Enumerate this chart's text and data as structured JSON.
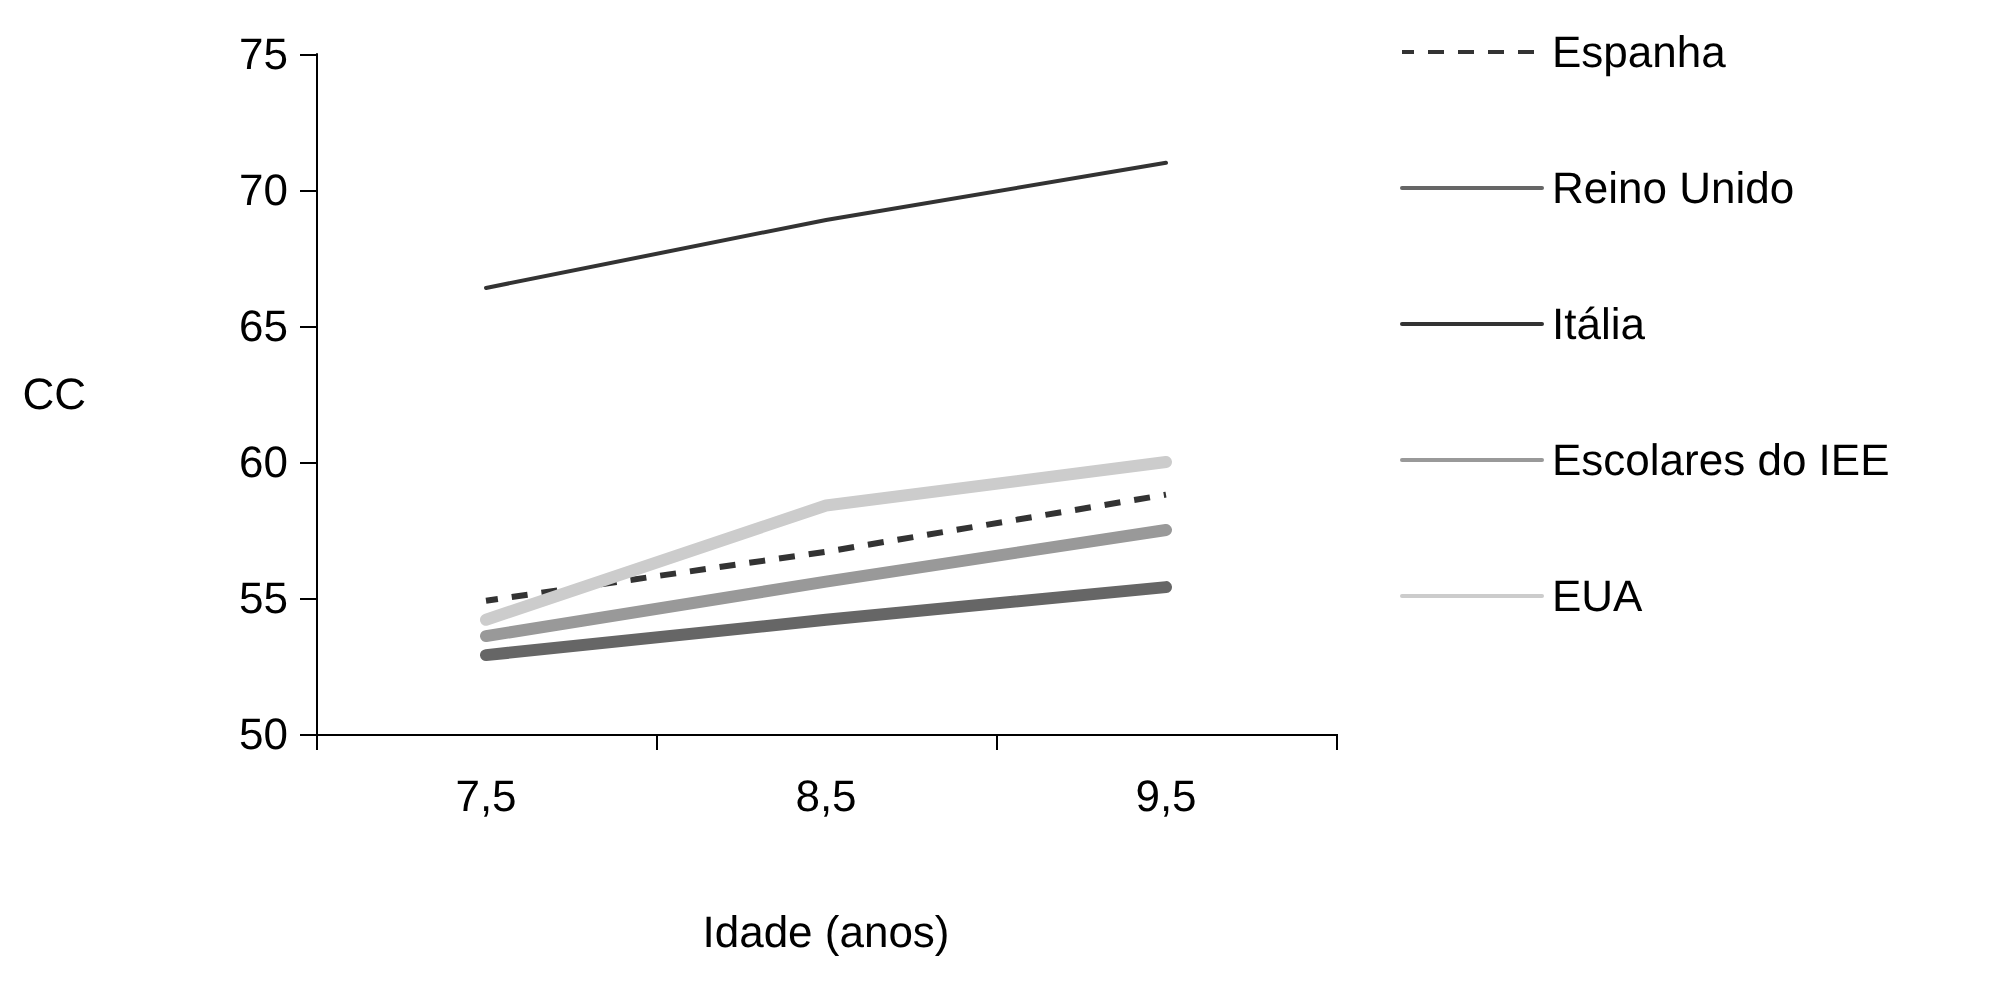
{
  "chart_data": {
    "type": "line",
    "xlabel": "Idade (anos)",
    "ylabel": "CC",
    "categories": [
      "7,5",
      "8,5",
      "9,5"
    ],
    "series": [
      {
        "name": "Espanha",
        "color": "#333333",
        "line_style": "dashed",
        "values": [
          54.9,
          56.7,
          58.8
        ]
      },
      {
        "name": "Reino Unido",
        "color": "#666666",
        "values": [
          52.9,
          54.2,
          55.4
        ]
      },
      {
        "name": "Itália",
        "color": "#333333",
        "values": [
          66.4,
          68.9,
          71.0
        ]
      },
      {
        "name": "Escolares do IEE",
        "color": "#999999",
        "values": [
          53.6,
          55.6,
          57.5
        ]
      },
      {
        "name": "EUA",
        "color": "#cccccc",
        "values": [
          54.2,
          58.4,
          60.0
        ]
      }
    ],
    "ylim": [
      50,
      75
    ],
    "yticks": [
      50,
      55,
      60,
      65,
      70,
      75
    ],
    "grid": false,
    "legend": "right",
    "marker": "none",
    "line_style": "solid"
  }
}
